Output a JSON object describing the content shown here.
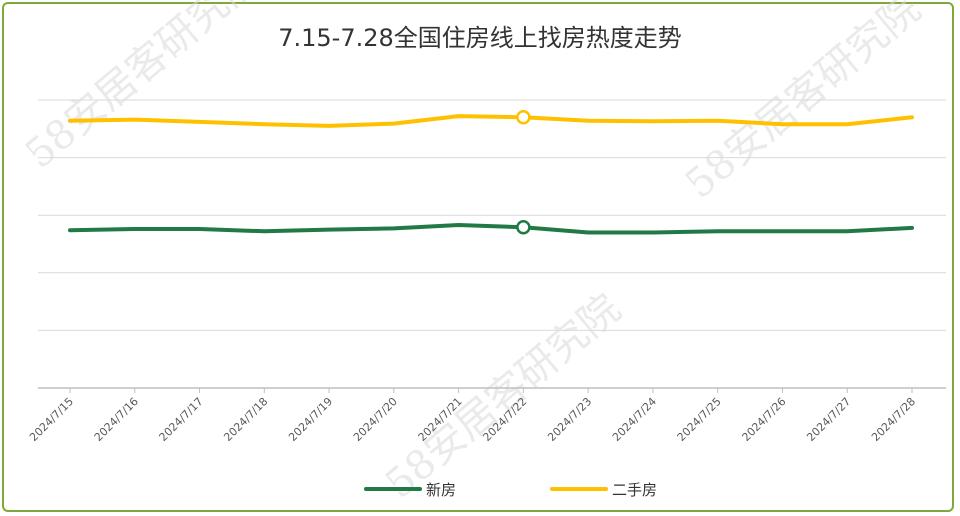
{
  "chart_data": {
    "type": "line",
    "title": "7.15-7.28全国住房线上找房热度走势",
    "categories": [
      "2024/7/15",
      "2024/7/16",
      "2024/7/17",
      "2024/7/18",
      "2024/7/19",
      "2024/7/20",
      "2024/7/21",
      "2024/7/22",
      "2024/7/23",
      "2024/7/24",
      "2024/7/25",
      "2024/7/26",
      "2024/7/27",
      "2024/7/28"
    ],
    "series": [
      {
        "name": "新房",
        "color": "#217a45",
        "values": [
          2.74,
          2.76,
          2.76,
          2.72,
          2.75,
          2.77,
          2.83,
          2.79,
          2.7,
          2.7,
          2.72,
          2.72,
          2.72,
          2.78
        ],
        "marker_index": 7
      },
      {
        "name": "二手房",
        "color": "#ffc000",
        "values": [
          4.64,
          4.66,
          4.62,
          4.58,
          4.55,
          4.59,
          4.72,
          4.7,
          4.64,
          4.63,
          4.64,
          4.58,
          4.58,
          4.7
        ],
        "marker_index": 7
      }
    ],
    "ylim": [
      0,
      5
    ],
    "grid": true,
    "legend_position": "bottom"
  },
  "watermark": "58安居客研究院"
}
